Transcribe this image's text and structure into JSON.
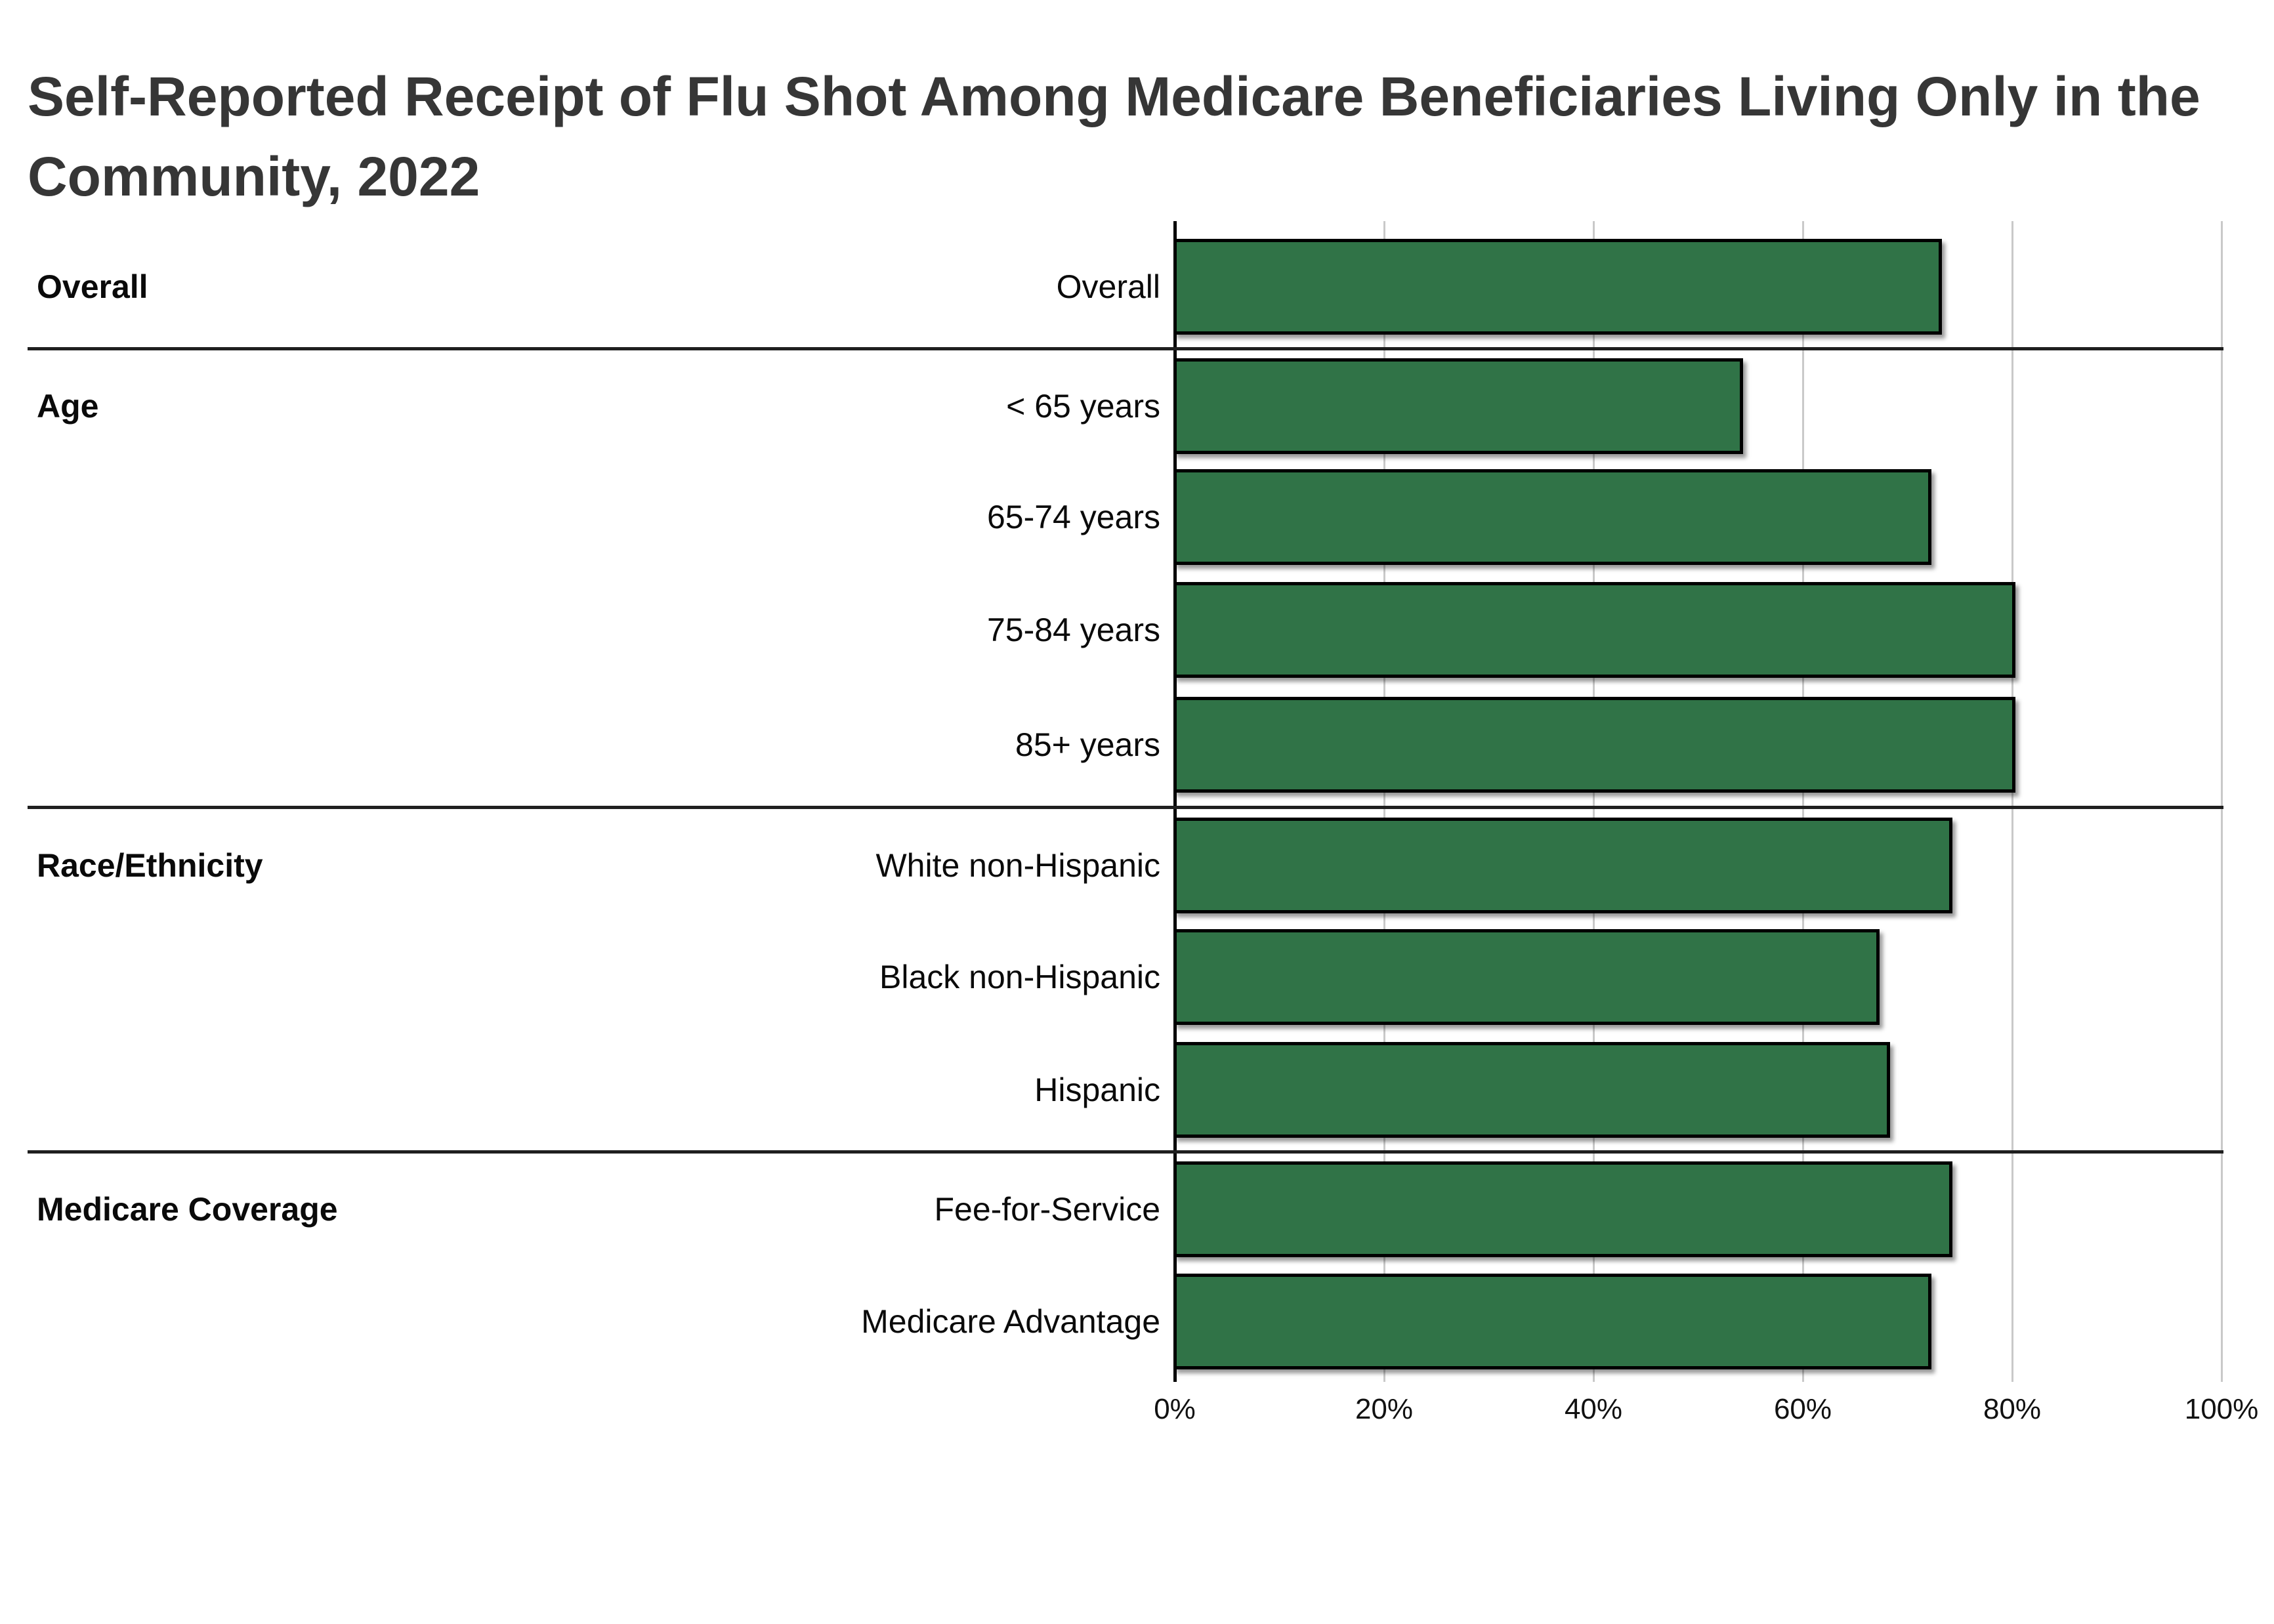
{
  "title": "Self-Reported Receipt of Flu Shot Among Medicare Beneficiaries Living Only in the\nCommunity, 2022",
  "chart_data": {
    "type": "bar",
    "orientation": "horizontal",
    "title": "Self-Reported Receipt of Flu Shot Among Medicare Beneficiaries Living Only in the Community, 2022",
    "xlabel": "",
    "ylabel": "",
    "unit": "%",
    "xlim": [
      0,
      100
    ],
    "grid": true,
    "x_ticks": [
      "0%",
      "20%",
      "40%",
      "60%",
      "80%",
      "100%"
    ],
    "x_tick_values": [
      0,
      20,
      40,
      60,
      80,
      100
    ],
    "bar_color": "#307347",
    "bar_border_color": "#000000",
    "groups": [
      {
        "label": "Overall",
        "rows": [
          {
            "label": "Overall",
            "value": 73
          }
        ]
      },
      {
        "label": "Age",
        "rows": [
          {
            "label": "< 65 years",
            "value": 54
          },
          {
            "label": "65-74 years",
            "value": 72
          },
          {
            "label": "75-84 years",
            "value": 80
          },
          {
            "label": "85+ years",
            "value": 80
          }
        ]
      },
      {
        "label": "Race/Ethnicity",
        "rows": [
          {
            "label": "White non-Hispanic",
            "value": 74
          },
          {
            "label": "Black non-Hispanic",
            "value": 67
          },
          {
            "label": "Hispanic",
            "value": 68
          }
        ]
      },
      {
        "label": "Medicare Coverage",
        "rows": [
          {
            "label": "Fee-for-Service",
            "value": 74
          },
          {
            "label": "Medicare Advantage",
            "value": 72
          }
        ]
      }
    ]
  },
  "colors": {
    "title_text": "#363636",
    "label_text": "#0a0a0a",
    "gridline": "#c9c9c9",
    "axis_line": "#000000",
    "separator": "#1f1f1f",
    "bar_fill": "#307347",
    "bar_border": "#000000",
    "background": "#ffffff"
  }
}
